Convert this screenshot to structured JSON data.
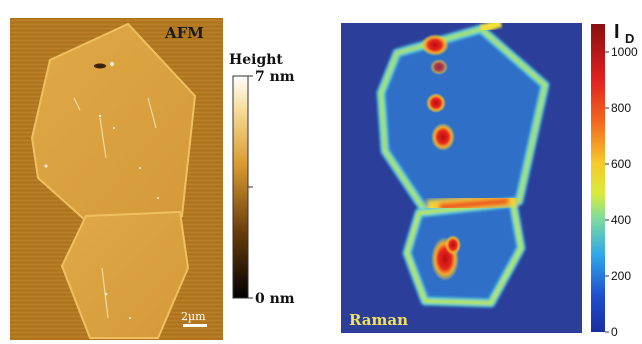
{
  "afm": {
    "label": "AFM",
    "scale_bar": "2µm",
    "colorbar": {
      "title": "Height",
      "max_label": "7 nm",
      "min_label": "0 nm"
    },
    "colors": {
      "background": "#b47a22",
      "flake": "#d9a040",
      "bright": "#ffffff"
    }
  },
  "raman": {
    "label": "Raman",
    "colorbar": {
      "title_main": "I",
      "title_sub": "D",
      "ticks": [
        "1000",
        "800",
        "600",
        "400",
        "200",
        "0"
      ],
      "tick_values": [
        1000,
        800,
        600,
        400,
        200,
        0
      ],
      "range": [
        0,
        1100
      ]
    },
    "colors": {
      "background": "#2b3f9a",
      "edge": "#9fe07a",
      "hot": "#d81c1c"
    }
  }
}
